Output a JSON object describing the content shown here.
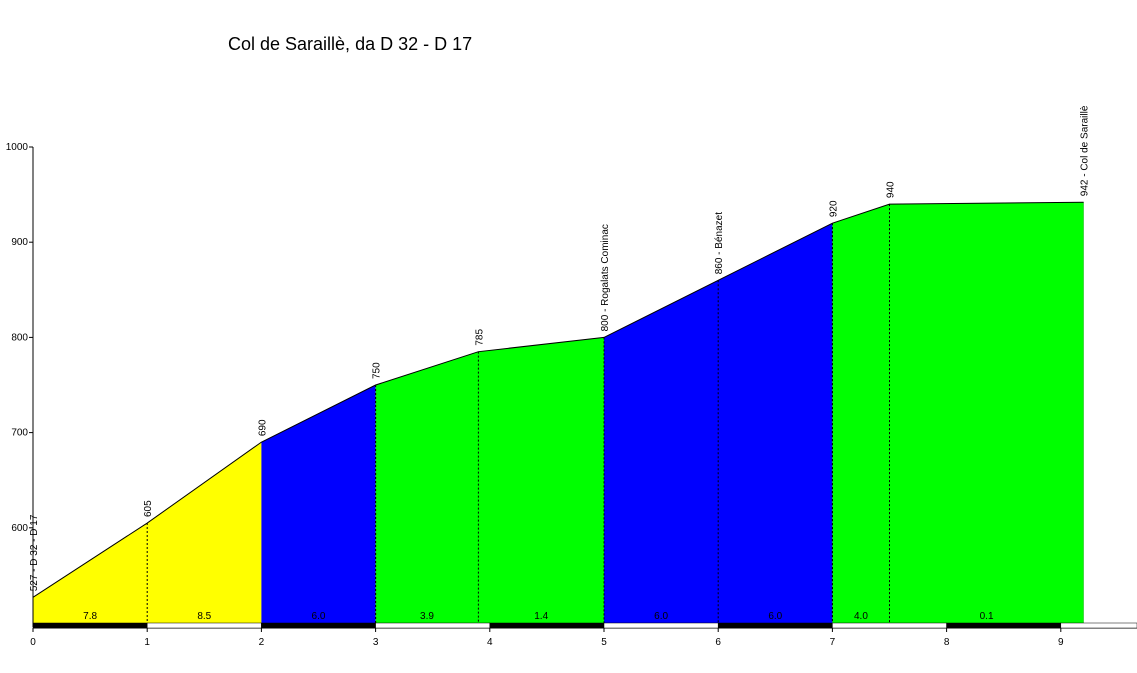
{
  "chart_data": {
    "type": "area",
    "title": "Col de Saraillè, da D 32 - D 17",
    "xlabel": "",
    "ylabel": "",
    "xlim": [
      0,
      9.5
    ],
    "ylim": [
      500,
      1000
    ],
    "x_ticks": [
      0,
      1,
      2,
      3,
      4,
      5,
      6,
      7,
      8,
      9
    ],
    "y_ticks": [
      600,
      700,
      800,
      900,
      1000
    ],
    "grid": false,
    "points": [
      {
        "x": 0,
        "y": 527,
        "label": "527 - D 32 - D 17"
      },
      {
        "x": 1,
        "y": 605,
        "label": "605"
      },
      {
        "x": 2,
        "y": 690,
        "label": "690"
      },
      {
        "x": 3,
        "y": 750,
        "label": "750"
      },
      {
        "x": 3.9,
        "y": 785,
        "label": "785"
      },
      {
        "x": 5,
        "y": 800,
        "label": "800 - Rogalats Cominac"
      },
      {
        "x": 6,
        "y": 860,
        "label": "860 - Bénazet"
      },
      {
        "x": 7,
        "y": 920,
        "label": "920"
      },
      {
        "x": 7.5,
        "y": 940,
        "label": "940"
      },
      {
        "x": 9.2,
        "y": 942,
        "label": "942 - Col de Saraillè"
      }
    ],
    "segments": [
      {
        "x0": 0,
        "x1": 2,
        "color": "#ffff00",
        "gradients": [
          {
            "x0": 0,
            "x1": 1,
            "grade": "7.8"
          },
          {
            "x0": 1,
            "x1": 2,
            "grade": "8.5"
          }
        ]
      },
      {
        "x0": 2,
        "x1": 3,
        "color": "#0000ff",
        "gradients": [
          {
            "x0": 2,
            "x1": 3,
            "grade": "6.0"
          }
        ]
      },
      {
        "x0": 3,
        "x1": 5,
        "color": "#00ff00",
        "gradients": [
          {
            "x0": 3,
            "x1": 3.9,
            "grade": "3.9"
          },
          {
            "x0": 3.9,
            "x1": 5,
            "grade": "1.4"
          }
        ]
      },
      {
        "x0": 5,
        "x1": 7,
        "color": "#0000ff",
        "gradients": [
          {
            "x0": 5,
            "x1": 6,
            "grade": "6.0"
          },
          {
            "x0": 6,
            "x1": 7,
            "grade": "6.0"
          }
        ]
      },
      {
        "x0": 7,
        "x1": 9.2,
        "color": "#00ff00",
        "gradients": [
          {
            "x0": 7,
            "x1": 7.5,
            "grade": "4.0"
          },
          {
            "x0": 7.5,
            "x1": 9.2,
            "grade": "0.1"
          }
        ]
      }
    ]
  }
}
